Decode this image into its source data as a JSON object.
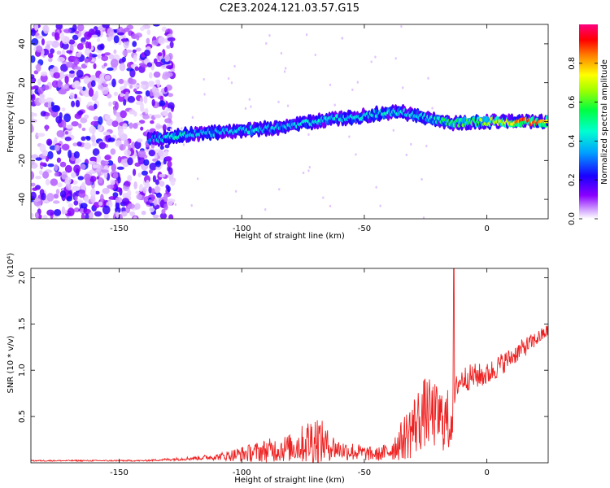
{
  "title": "C2E3.2024.121.03.57.G15",
  "chart_data": [
    {
      "type": "heatmap",
      "xlabel": "Height of straight line (km)",
      "ylabel": "Frequency (Hz)",
      "xlim": [
        -186,
        25
      ],
      "ylim": [
        -50,
        50
      ],
      "x_ticks": [
        -150,
        -100,
        -50,
        0
      ],
      "y_ticks": [
        -40,
        -20,
        0,
        20,
        40
      ],
      "colorbar": {
        "label": "Normalized spectral amplitude",
        "range": [
          0,
          1
        ],
        "ticks": [
          0.0,
          0.2,
          0.4,
          0.6,
          0.8
        ],
        "colors": [
          "#ffffff",
          "#b060ff",
          "#3000ff",
          "#00b0ff",
          "#00ff80",
          "#80ff00",
          "#ffff00",
          "#ff8000",
          "#ff0000",
          "#ff0080"
        ]
      },
      "noise_region_x": [
        -186,
        -132
      ],
      "ridge": {
        "x": [
          -135,
          -125,
          -115,
          -105,
          -95,
          -85,
          -75,
          -65,
          -55,
          -45,
          -35,
          -25,
          -15,
          -5,
          5,
          15,
          25
        ],
        "frequency": [
          -9,
          -7,
          -6,
          -5,
          -4,
          -3,
          -1,
          1,
          2,
          4,
          5,
          2,
          -1,
          0,
          0,
          0,
          0
        ],
        "amplitude": [
          0.35,
          0.45,
          0.35,
          0.38,
          0.4,
          0.35,
          0.4,
          0.42,
          0.38,
          0.45,
          0.4,
          0.38,
          0.55,
          0.6,
          0.7,
          0.85,
          0.8
        ]
      }
    },
    {
      "type": "line",
      "xlabel": "Height of straight line (km)",
      "ylabel": "SNR (10 * v/v)",
      "y_multiplier": "(x10⁴)",
      "xlim": [
        -186,
        25
      ],
      "ylim": [
        0,
        2.1
      ],
      "x_ticks": [
        -150,
        -100,
        -50,
        0
      ],
      "y_ticks": [
        0.5,
        1.0,
        1.5,
        2.0
      ],
      "y_tick_labels": [
        "0.5",
        "1.0",
        "1.5",
        "2.0"
      ],
      "color": "#ee2222",
      "envelope": {
        "x": [
          -186,
          -140,
          -130,
          -120,
          -110,
          -100,
          -90,
          -80,
          -75,
          -70,
          -65,
          -60,
          -55,
          -50,
          -45,
          -40,
          -35,
          -30,
          -25,
          -20,
          -15,
          -13,
          -12,
          -10,
          -5,
          0,
          5,
          10,
          15,
          20,
          25
        ],
        "base": [
          0.02,
          0.02,
          0.03,
          0.04,
          0.05,
          0.06,
          0.08,
          0.1,
          0.12,
          0.13,
          0.12,
          0.1,
          0.08,
          0.07,
          0.06,
          0.08,
          0.15,
          0.25,
          0.4,
          0.35,
          0.3,
          0.6,
          0.8,
          0.85,
          0.88,
          0.9,
          1.0,
          1.1,
          1.2,
          1.3,
          1.4
        ],
        "amp": [
          0.01,
          0.01,
          0.02,
          0.03,
          0.05,
          0.12,
          0.18,
          0.22,
          0.3,
          0.45,
          0.25,
          0.15,
          0.15,
          0.12,
          0.1,
          0.15,
          0.3,
          0.5,
          0.55,
          0.5,
          0.5,
          0.3,
          0.2,
          0.2,
          0.2,
          0.18,
          0.18,
          0.15,
          0.15,
          0.12,
          0.1
        ]
      },
      "peak": {
        "x": -13.5,
        "y": 2.12
      }
    }
  ]
}
